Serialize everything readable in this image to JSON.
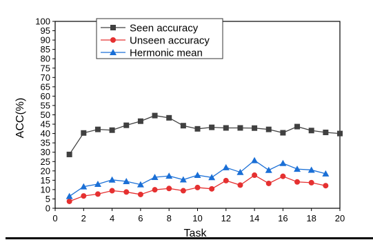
{
  "chart_data": {
    "type": "line",
    "title": "",
    "xlabel": "Task",
    "ylabel": "ACC(%)",
    "xlim": [
      0,
      20
    ],
    "ylim": [
      0,
      100
    ],
    "xticks": [
      0,
      2,
      4,
      6,
      8,
      10,
      12,
      14,
      16,
      18,
      20
    ],
    "yticks": [
      0,
      5,
      10,
      15,
      20,
      25,
      30,
      35,
      40,
      45,
      50,
      55,
      60,
      65,
      70,
      75,
      80,
      85,
      90,
      95,
      100
    ],
    "grid": false,
    "legend_position": "top-left",
    "x": [
      1,
      2,
      3,
      4,
      5,
      6,
      7,
      8,
      9,
      10,
      11,
      12,
      13,
      14,
      15,
      16,
      17,
      18,
      19,
      20
    ],
    "series": [
      {
        "name": "Seen accuracy",
        "color": "#404040",
        "marker": "square",
        "x": [
          1,
          2,
          3,
          4,
          5,
          6,
          7,
          8,
          9,
          10,
          11,
          12,
          13,
          14,
          15,
          16,
          17,
          18,
          19,
          20
        ],
        "values": [
          28.8,
          40.3,
          42.2,
          41.8,
          44.4,
          46.6,
          49.6,
          48.4,
          44.2,
          42.5,
          43.3,
          43.0,
          43.0,
          42.9,
          42.2,
          40.4,
          43.7,
          41.6,
          40.6,
          40.0
        ]
      },
      {
        "name": "Unseen accuracy",
        "color": "#e53030",
        "marker": "circle",
        "x": [
          1,
          2,
          3,
          4,
          5,
          6,
          7,
          8,
          9,
          10,
          11,
          12,
          13,
          14,
          15,
          16,
          17,
          18,
          19
        ],
        "values": [
          3.7,
          6.6,
          7.6,
          9.4,
          8.7,
          7.4,
          9.9,
          10.6,
          9.4,
          11.1,
          10.4,
          14.8,
          12.4,
          17.7,
          13.3,
          17.1,
          14.1,
          13.7,
          12.1
        ]
      },
      {
        "name": "Hermonic mean",
        "color": "#1a6fd6",
        "marker": "triangle",
        "x": [
          1,
          2,
          3,
          4,
          5,
          6,
          7,
          8,
          9,
          10,
          11,
          12,
          13,
          14,
          15,
          16,
          17,
          18,
          19
        ],
        "values": [
          6.4,
          11.6,
          12.9,
          15.2,
          14.4,
          12.7,
          16.6,
          17.3,
          15.3,
          17.7,
          16.5,
          21.8,
          19.3,
          25.6,
          20.4,
          24.1,
          21.0,
          20.5,
          18.5
        ]
      }
    ]
  }
}
